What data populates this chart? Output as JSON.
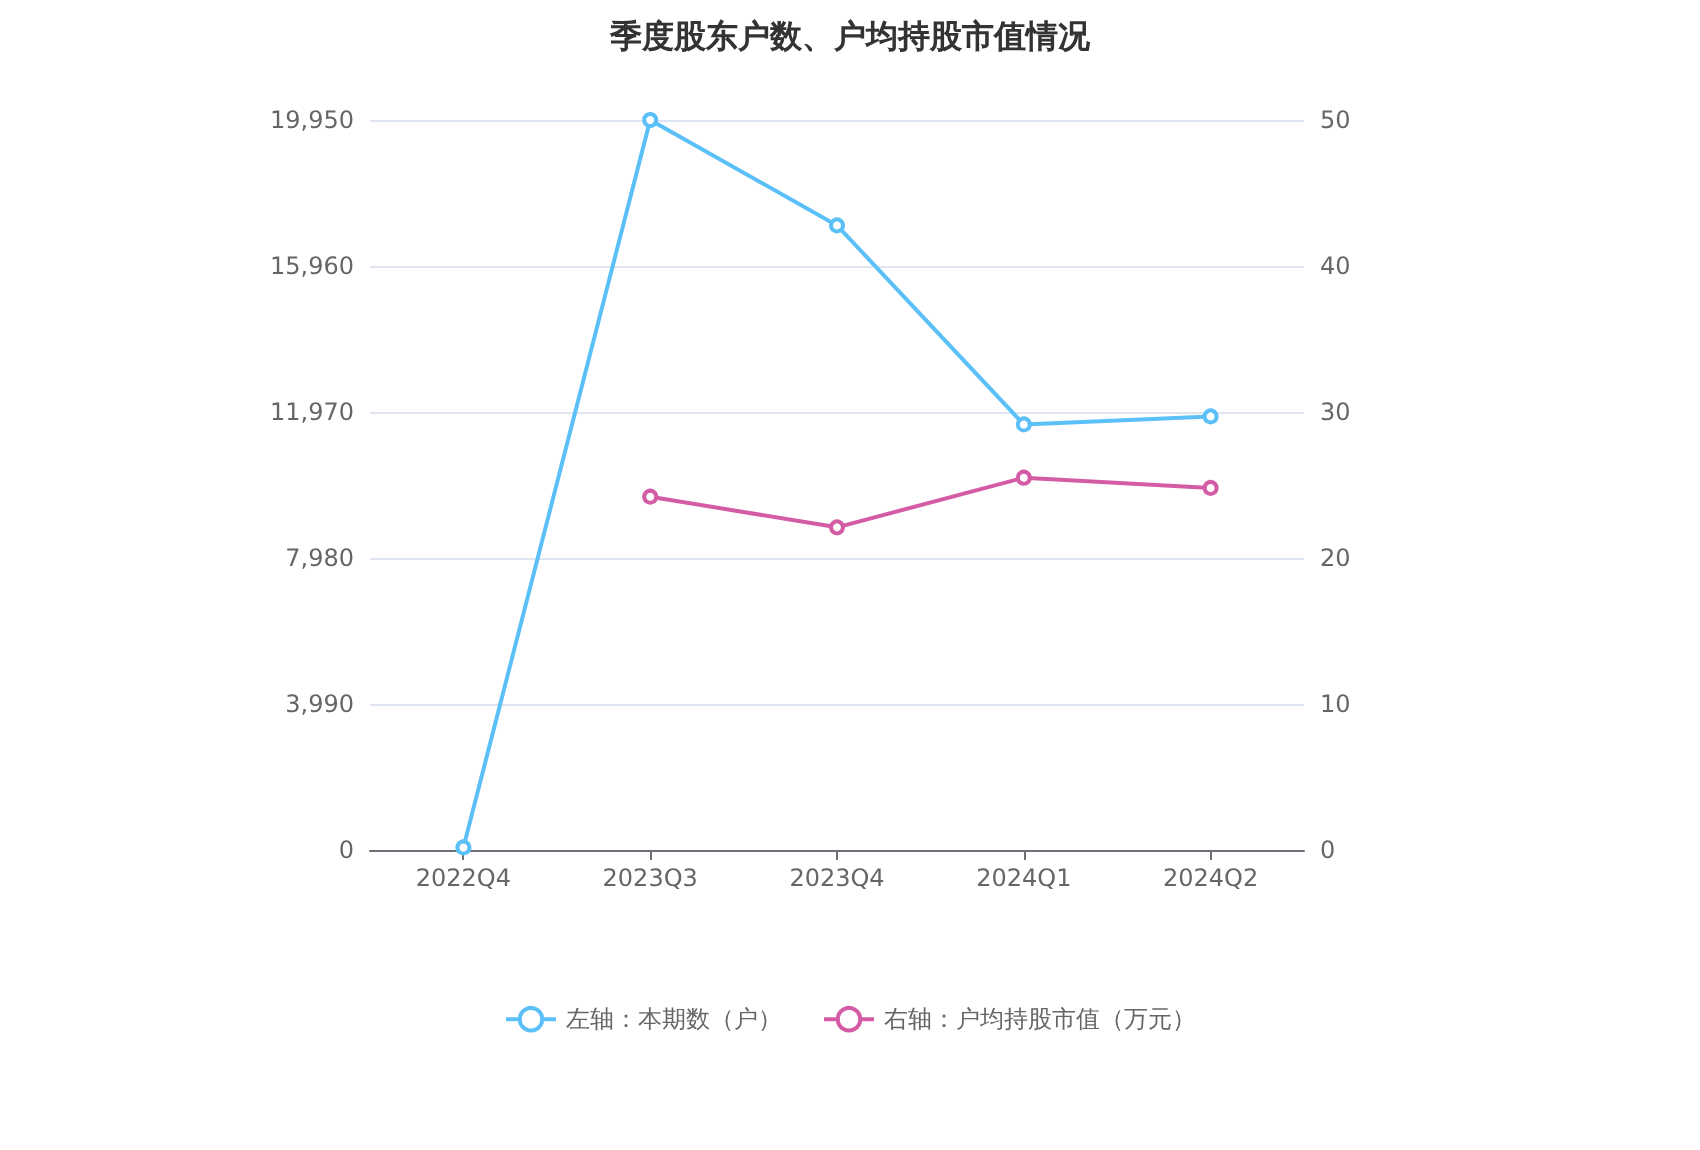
{
  "chart_data": {
    "type": "line",
    "title": "季度股东户数、户均持股市值情况",
    "categories": [
      "2022Q4",
      "2023Q3",
      "2023Q4",
      "2024Q1",
      "2024Q2"
    ],
    "series": [
      {
        "name": "左轴：本期数（户）",
        "color": "#5bc0f8",
        "values": [
          70,
          19950,
          17070,
          11630,
          11850
        ]
      },
      {
        "name": "右轴：户均持股市值（万元）",
        "color": "#d45ca5",
        "axis": "y2",
        "values": [
          null,
          24.2,
          22.1,
          25.5,
          24.8
        ]
      }
    ],
    "ylim": [
      0,
      19950
    ],
    "yticks": [
      {
        "value": 0,
        "label": "0"
      },
      {
        "value": 3990,
        "label": "3,990"
      },
      {
        "value": 7980,
        "label": "7,980"
      },
      {
        "value": 11970,
        "label": "11,970"
      },
      {
        "value": 15960,
        "label": "15,960"
      },
      {
        "value": 19950,
        "label": "19,950"
      }
    ],
    "y2lim": [
      0,
      50
    ],
    "y2ticks": [
      0,
      10,
      20,
      30,
      40,
      50
    ],
    "grid": "y",
    "legend": "bottom",
    "marker": "circle",
    "line_style": "solid"
  }
}
